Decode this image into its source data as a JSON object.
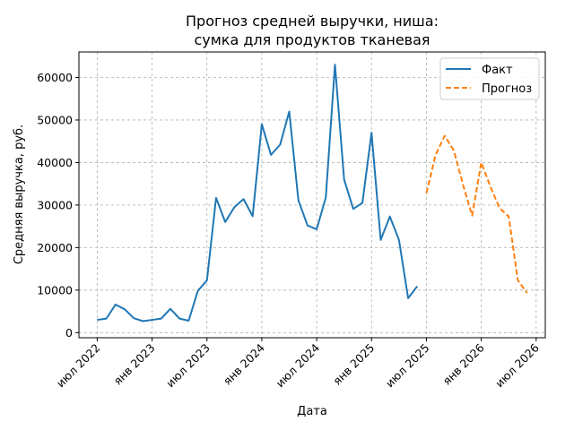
{
  "chart_data": {
    "type": "line",
    "title_line1": "Прогноз средней выручки, ниша:",
    "title_line2": "сумка для продуктов тканевая",
    "xlabel": "Дата",
    "ylabel": "Средняя выручка, руб.",
    "x_ticks": [
      "июл 2022",
      "янв 2023",
      "июл 2023",
      "янв 2024",
      "июл 2024",
      "янв 2025",
      "июл 2025",
      "янв 2026",
      "июл 2026"
    ],
    "y_ticks": [
      "0",
      "10000",
      "20000",
      "30000",
      "40000",
      "50000",
      "60000"
    ],
    "ylim": [
      -1200,
      66000
    ],
    "xlim": [
      "2022-05",
      "2026-08"
    ],
    "grid": true,
    "legend_position": "top-right",
    "series": [
      {
        "name": "Факт",
        "color": "#1f77b4",
        "style": "solid",
        "points": [
          [
            "2022-07",
            3000
          ],
          [
            "2022-08",
            3300
          ],
          [
            "2022-09",
            6600
          ],
          [
            "2022-10",
            5500
          ],
          [
            "2022-11",
            3400
          ],
          [
            "2022-12",
            2700
          ],
          [
            "2023-01",
            3000
          ],
          [
            "2023-02",
            3300
          ],
          [
            "2023-03",
            5600
          ],
          [
            "2023-04",
            3300
          ],
          [
            "2023-05",
            2800
          ],
          [
            "2023-06",
            9800
          ],
          [
            "2023-07",
            12300
          ],
          [
            "2023-08",
            31700
          ],
          [
            "2023-09",
            26000
          ],
          [
            "2023-10",
            29500
          ],
          [
            "2023-11",
            31400
          ],
          [
            "2023-12",
            27400
          ],
          [
            "2024-01",
            49000
          ],
          [
            "2024-02",
            41800
          ],
          [
            "2024-03",
            44200
          ],
          [
            "2024-04",
            52000
          ],
          [
            "2024-05",
            31100
          ],
          [
            "2024-06",
            25200
          ],
          [
            "2024-07",
            24300
          ],
          [
            "2024-08",
            31800
          ],
          [
            "2024-09",
            63000
          ],
          [
            "2024-10",
            36000
          ],
          [
            "2024-11",
            29100
          ],
          [
            "2024-12",
            30500
          ],
          [
            "2025-01",
            47000
          ],
          [
            "2025-02",
            21800
          ],
          [
            "2025-03",
            27300
          ],
          [
            "2025-04",
            21800
          ],
          [
            "2025-05",
            8100
          ],
          [
            "2025-06",
            10900
          ]
        ]
      },
      {
        "name": "Прогноз",
        "color": "#ff7f0e",
        "style": "dashed",
        "points": [
          [
            "2025-07",
            32800
          ],
          [
            "2025-08",
            41800
          ],
          [
            "2025-09",
            46300
          ],
          [
            "2025-10",
            42800
          ],
          [
            "2025-11",
            34800
          ],
          [
            "2025-12",
            27500
          ],
          [
            "2026-01",
            40000
          ],
          [
            "2026-02",
            34300
          ],
          [
            "2026-03",
            29300
          ],
          [
            "2026-04",
            27300
          ],
          [
            "2026-05",
            12300
          ],
          [
            "2026-06",
            9300
          ]
        ]
      }
    ]
  }
}
